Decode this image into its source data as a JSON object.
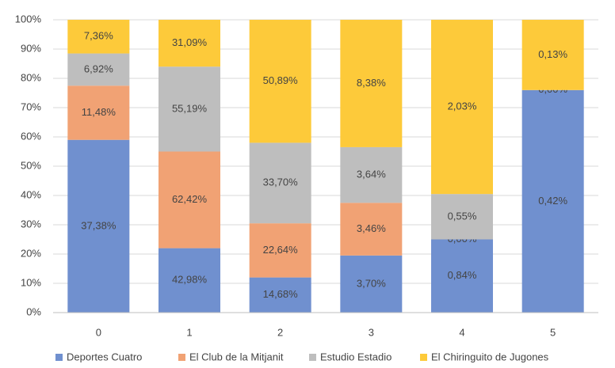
{
  "chart_data": {
    "type": "stacked_bar",
    "categories": [
      "0",
      "1",
      "2",
      "3",
      "4",
      "5"
    ],
    "ylim": [
      0,
      100
    ],
    "yticks": [
      {
        "value": 0,
        "label": "0%"
      },
      {
        "value": 10,
        "label": "10%"
      },
      {
        "value": 20,
        "label": "20%"
      },
      {
        "value": 30,
        "label": "30%"
      },
      {
        "value": 40,
        "label": "40%"
      },
      {
        "value": 50,
        "label": "50%"
      },
      {
        "value": 60,
        "label": "60%"
      },
      {
        "value": 70,
        "label": "70%"
      },
      {
        "value": 80,
        "label": "80%"
      },
      {
        "value": 90,
        "label": "90%"
      },
      {
        "value": 100,
        "label": "100%"
      }
    ],
    "grid": true,
    "legend": "bottom",
    "series": [
      {
        "name": "Deportes Cuatro",
        "color": "#7090cf",
        "values": [
          59,
          22,
          12,
          19.5,
          25,
          76
        ],
        "labels": [
          "37,38%",
          "42,98%",
          "14,68%",
          "3,70%",
          "0,84%",
          "0,42%"
        ]
      },
      {
        "name": "El Club de la Mitjanit",
        "color": "#f1a274",
        "values": [
          18.5,
          33,
          18.5,
          18,
          0,
          0
        ],
        "labels": [
          "11,48%",
          "62,42%",
          "22,64%",
          "3,46%",
          "0,00%",
          "0,00%"
        ]
      },
      {
        "name": "Estudio Estadio",
        "color": "#bebebe",
        "values": [
          11,
          29,
          27.5,
          19,
          15.5,
          0
        ],
        "labels": [
          "6,92%",
          "55,19%",
          "33,70%",
          "3,64%",
          "0,55%",
          null
        ]
      },
      {
        "name": "El Chiringuito de Jugones",
        "color": "#fdca3a",
        "values": [
          11.5,
          16,
          42,
          43.5,
          59.5,
          24
        ],
        "labels": [
          "7,36%",
          "31,09%",
          "50,89%",
          "8,38%",
          "2,03%",
          "0,13%"
        ]
      }
    ]
  }
}
